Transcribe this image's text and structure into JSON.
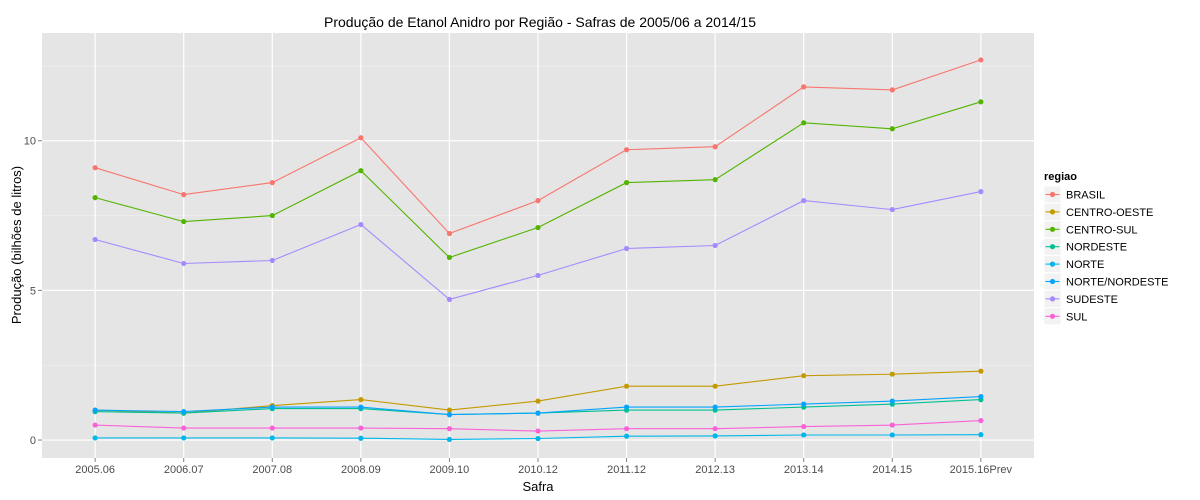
{
  "chart_data": {
    "type": "line",
    "title": "Produção de Etanol Anidro por Região - Safras de 2005/06 a 2014/15",
    "xlabel": "Safra",
    "ylabel": "Produção (bilhões de litros)",
    "categories": [
      "2005.06",
      "2006.07",
      "2007.08",
      "2008.09",
      "2009.10",
      "2010.12",
      "2011.12",
      "2012.13",
      "2013.14",
      "2014.15",
      "2015.16Prev"
    ],
    "ylim": [
      -0.6,
      13.6
    ],
    "yticks": [
      0,
      5,
      10
    ],
    "grid": true,
    "legend": {
      "title": "regiao",
      "position": "right"
    },
    "series": [
      {
        "name": "BRASIL",
        "color": "#F8766D",
        "values": [
          9.1,
          8.2,
          8.6,
          10.1,
          6.9,
          8.0,
          9.7,
          9.8,
          11.8,
          11.7,
          12.7
        ]
      },
      {
        "name": "CENTRO-OESTE",
        "color": "#C49A00",
        "values": [
          1.0,
          0.9,
          1.15,
          1.35,
          1.0,
          1.3,
          1.8,
          1.8,
          2.15,
          2.2,
          2.3
        ]
      },
      {
        "name": "CENTRO-SUL",
        "color": "#53B400",
        "values": [
          8.1,
          7.3,
          7.5,
          9.0,
          6.1,
          7.1,
          8.6,
          8.7,
          10.6,
          10.4,
          11.3
        ]
      },
      {
        "name": "NORDESTE",
        "color": "#00C094",
        "values": [
          0.95,
          0.9,
          1.05,
          1.05,
          0.85,
          0.9,
          1.0,
          1.0,
          1.1,
          1.2,
          1.35
        ]
      },
      {
        "name": "NORTE",
        "color": "#00B6EB",
        "values": [
          0.07,
          0.07,
          0.07,
          0.06,
          0.02,
          0.05,
          0.13,
          0.14,
          0.17,
          0.17,
          0.18
        ]
      },
      {
        "name": "NORTE/NORDESTE",
        "color": "#06A4FF",
        "values": [
          1.0,
          0.95,
          1.1,
          1.1,
          0.85,
          0.9,
          1.1,
          1.1,
          1.2,
          1.3,
          1.45
        ]
      },
      {
        "name": "SUDESTE",
        "color": "#A58AFF",
        "values": [
          6.7,
          5.9,
          6.0,
          7.2,
          4.7,
          5.5,
          6.4,
          6.5,
          8.0,
          7.7,
          8.3
        ]
      },
      {
        "name": "SUL",
        "color": "#FB61D7",
        "values": [
          0.5,
          0.4,
          0.4,
          0.4,
          0.38,
          0.3,
          0.38,
          0.38,
          0.45,
          0.5,
          0.65
        ]
      }
    ]
  }
}
